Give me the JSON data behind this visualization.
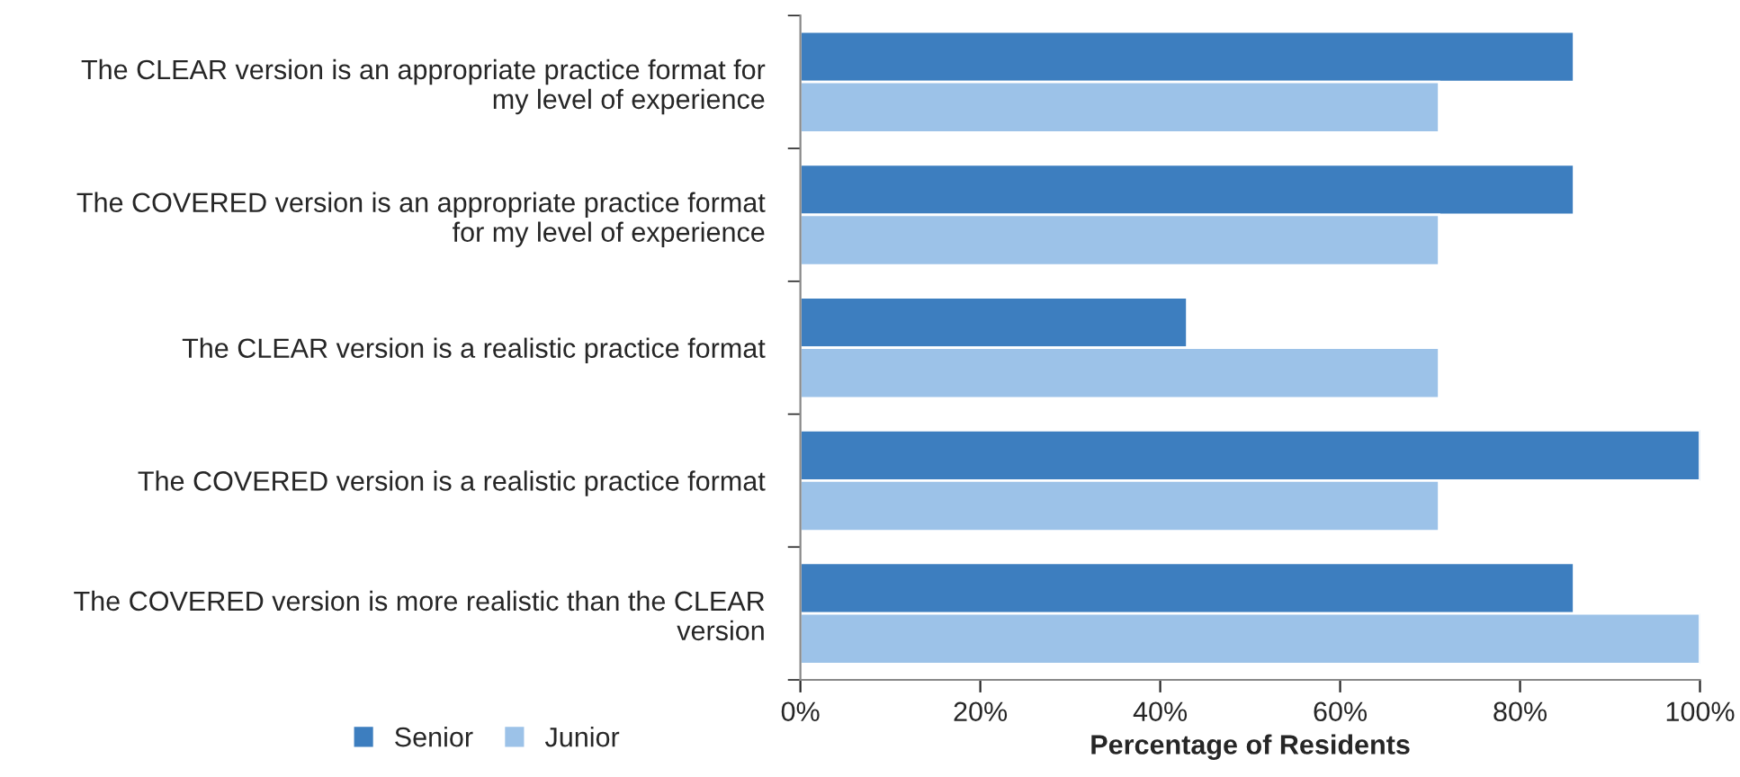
{
  "chart_data": {
    "type": "bar",
    "orientation": "horizontal",
    "xlabel": "Percentage of Residents",
    "categories": [
      "The CLEAR version is an appropriate practice format for\nmy level of experience",
      "The COVERED version is an appropriate practice format\nfor my level of experience",
      "The CLEAR version is a realistic practice format",
      "The COVERED version is a realistic practice format",
      "The COVERED version is more realistic than the CLEAR\nversion"
    ],
    "series": [
      {
        "name": "Senior",
        "color": "#3d7ebf",
        "values": [
          86,
          86,
          43,
          100,
          86
        ]
      },
      {
        "name": "Junior",
        "color": "#9cc2e8",
        "values": [
          71,
          71,
          71,
          71,
          100
        ]
      }
    ],
    "xlim": [
      0,
      100
    ],
    "xticks": [
      {
        "value": 0,
        "label": "0%"
      },
      {
        "value": 20,
        "label": "20%"
      },
      {
        "value": 40,
        "label": "40%"
      },
      {
        "value": 60,
        "label": "60%"
      },
      {
        "value": 80,
        "label": "80%"
      },
      {
        "value": 100,
        "label": "100%"
      }
    ],
    "grid": false,
    "legend": "bottom left"
  }
}
